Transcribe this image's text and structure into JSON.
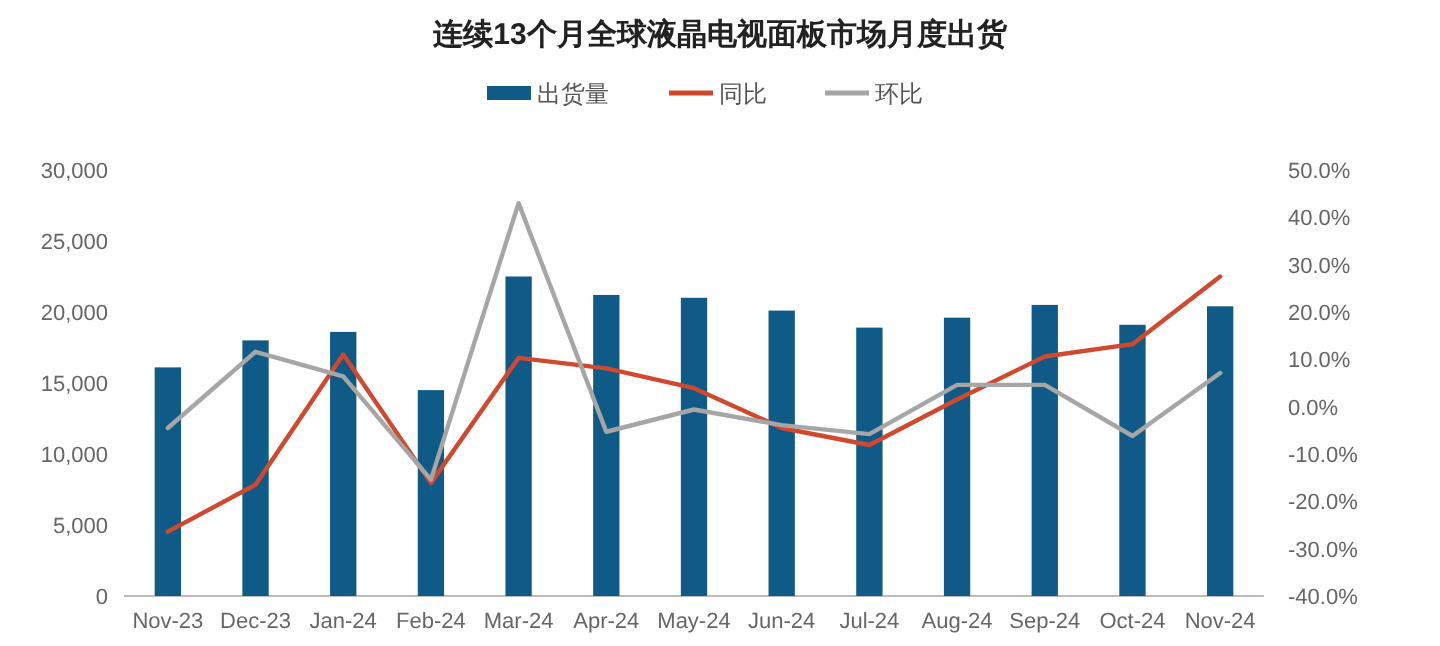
{
  "chart_data": {
    "type": "bar",
    "title": "连续13个月全球液晶电视面板市场月度出货",
    "categories": [
      "Nov-23",
      "Dec-23",
      "Jan-24",
      "Feb-24",
      "Mar-24",
      "Apr-24",
      "May-24",
      "Jun-24",
      "Jul-24",
      "Aug-24",
      "Sep-24",
      "Oct-24",
      "Nov-24"
    ],
    "series": [
      {
        "name": "出货量",
        "color": "#0f5a87",
        "values": [
          16100,
          18000,
          18600,
          14500,
          22500,
          21200,
          21000,
          20100,
          18900,
          19600,
          20500,
          19100,
          20400
        ]
      },
      {
        "name": "同比",
        "color": "#d0492f",
        "type": "line",
        "axis": "y2",
        "values": [
          -26.4,
          -16.5,
          11.0,
          -16.1,
          10.3,
          8.1,
          3.9,
          -4.5,
          -8.1,
          1.5,
          10.6,
          13.2,
          27.5
        ]
      },
      {
        "name": "环比",
        "color": "#a6a6a6",
        "type": "line",
        "axis": "y2",
        "values": [
          -4.5,
          11.6,
          6.4,
          -15.4,
          43.0,
          -5.3,
          -0.6,
          -3.9,
          -5.8,
          4.6,
          4.6,
          -6.2,
          7.1
        ]
      }
    ],
    "ylim": [
      0,
      30000
    ],
    "yticks": [
      {
        "value": 0,
        "label": "0"
      },
      {
        "value": 5000,
        "label": "5,000"
      },
      {
        "value": 10000,
        "label": "10,000"
      },
      {
        "value": 15000,
        "label": "15,000"
      },
      {
        "value": 20000,
        "label": "20,000"
      },
      {
        "value": 25000,
        "label": "25,000"
      },
      {
        "value": 30000,
        "label": "30,000"
      }
    ],
    "y2lim": [
      -40,
      50
    ],
    "y2ticks": [
      {
        "value": -40,
        "label": "-40.0%"
      },
      {
        "value": -30,
        "label": "-30.0%"
      },
      {
        "value": -20,
        "label": "-20.0%"
      },
      {
        "value": -10,
        "label": "-10.0%"
      },
      {
        "value": 0,
        "label": "0.0%"
      },
      {
        "value": 10,
        "label": "10.0%"
      },
      {
        "value": 20,
        "label": "20.0%"
      },
      {
        "value": 30,
        "label": "30.0%"
      },
      {
        "value": 40,
        "label": "40.0%"
      },
      {
        "value": 50,
        "label": "50.0%"
      }
    ],
    "legend": "top",
    "grid": false
  }
}
